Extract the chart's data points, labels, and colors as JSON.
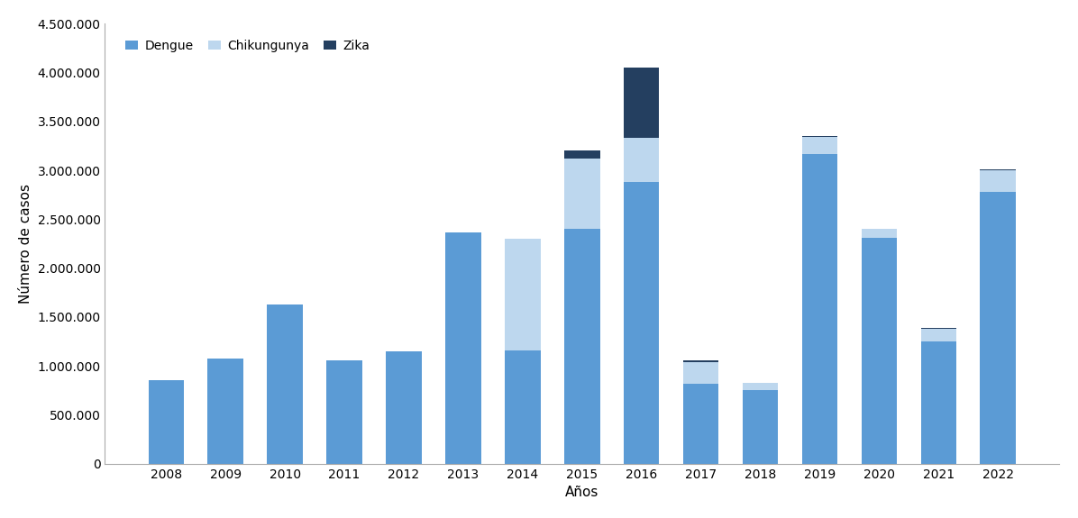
{
  "years": [
    2008,
    2009,
    2010,
    2011,
    2012,
    2013,
    2014,
    2015,
    2016,
    2017,
    2018,
    2019,
    2020,
    2021,
    2022
  ],
  "dengue": [
    850000,
    1080000,
    1630000,
    1055000,
    1150000,
    2370000,
    1160000,
    2400000,
    2880000,
    820000,
    750000,
    3170000,
    2310000,
    1250000,
    2780000
  ],
  "chikungunya": [
    0,
    0,
    0,
    0,
    0,
    0,
    1140000,
    720000,
    450000,
    220000,
    75000,
    170000,
    90000,
    130000,
    220000
  ],
  "zika": [
    0,
    0,
    0,
    0,
    0,
    0,
    0,
    80000,
    720000,
    20000,
    5000,
    10000,
    5000,
    5000,
    15000
  ],
  "dengue_color": "#5B9BD5",
  "chikungunya_color": "#BDD7EE",
  "zika_color": "#243F60",
  "ylabel": "Número de casos",
  "xlabel": "Años",
  "ylim": [
    0,
    4500000
  ],
  "yticks": [
    0,
    500000,
    1000000,
    1500000,
    2000000,
    2500000,
    3000000,
    3500000,
    4000000,
    4500000
  ],
  "legend_labels": [
    "Dengue",
    "Chikungunya",
    "Zika"
  ],
  "background_color": "#ffffff",
  "bar_width": 0.6,
  "spine_color": "#AAAAAA",
  "tick_label_fontsize": 10,
  "axis_label_fontsize": 11,
  "legend_fontsize": 10
}
